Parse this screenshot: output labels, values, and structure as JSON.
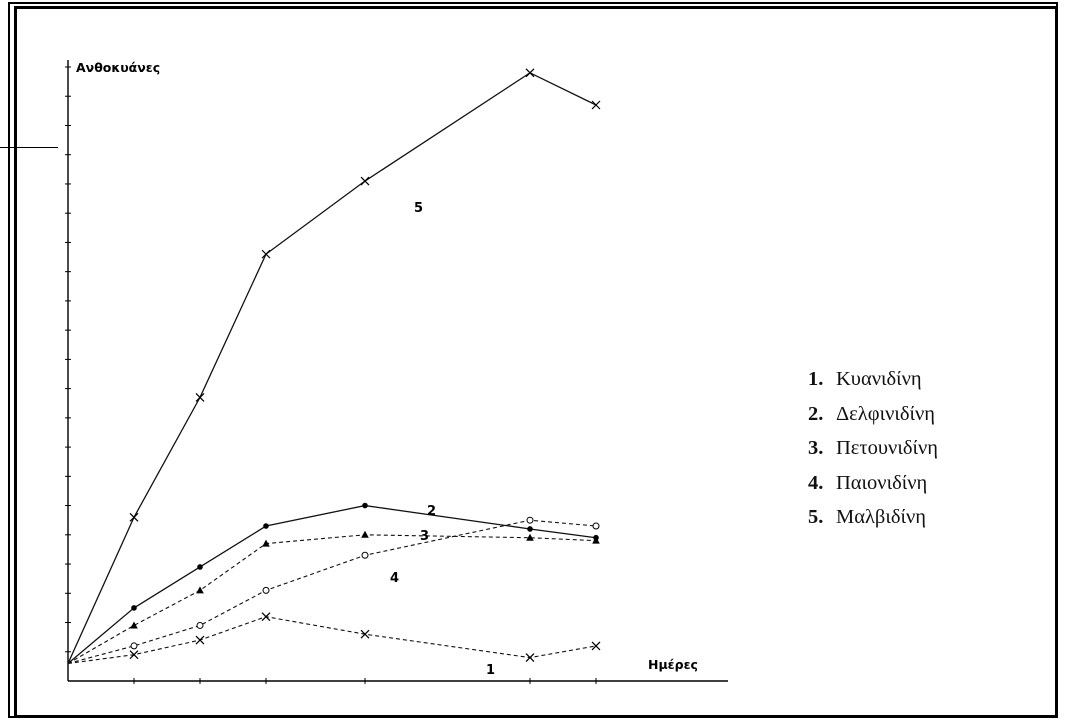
{
  "chart_data": {
    "type": "line",
    "ylabel": "Ανθοκυάνες",
    "xlabel": "Ημέρες",
    "x": [
      0,
      2,
      4,
      6,
      9,
      14,
      16
    ],
    "xlim": [
      0,
      20
    ],
    "ylim": [
      0,
      21
    ],
    "grid": false,
    "legend_position": "right",
    "series": [
      {
        "id": "1",
        "name": "Κυανιδίνη",
        "marker": "x",
        "dash": true,
        "values": [
          0.6,
          0.9,
          1.4,
          2.2,
          1.6,
          0.8,
          1.2
        ]
      },
      {
        "id": "2",
        "name": "Δελφινιδίνη",
        "marker": "dot",
        "dash": false,
        "values": [
          0.6,
          2.5,
          3.9,
          5.3,
          6.0,
          5.2,
          4.9
        ]
      },
      {
        "id": "3",
        "name": "Πετουνιδίνη",
        "marker": "triangle",
        "dash": true,
        "values": [
          0.6,
          1.9,
          3.1,
          4.7,
          5.0,
          4.9,
          4.8
        ]
      },
      {
        "id": "4",
        "name": "Παιονιδίνη",
        "marker": "circle",
        "dash": true,
        "values": [
          0.6,
          1.2,
          1.9,
          3.1,
          4.3,
          5.5,
          5.3
        ]
      },
      {
        "id": "5",
        "name": "Μαλβιδίνη",
        "marker": "x",
        "dash": false,
        "values": [
          0.6,
          5.6,
          9.7,
          14.6,
          17.1,
          20.8,
          19.7
        ]
      }
    ]
  },
  "legend": [
    {
      "num": "1.",
      "label": "Κυανιδίνη"
    },
    {
      "num": "2.",
      "label": "Δελφινιδίνη"
    },
    {
      "num": "3.",
      "label": "Πετουνιδίνη"
    },
    {
      "num": "4.",
      "label": "Παιονιδίνη"
    },
    {
      "num": "5.",
      "label": "Μαλβιδίνη"
    }
  ]
}
